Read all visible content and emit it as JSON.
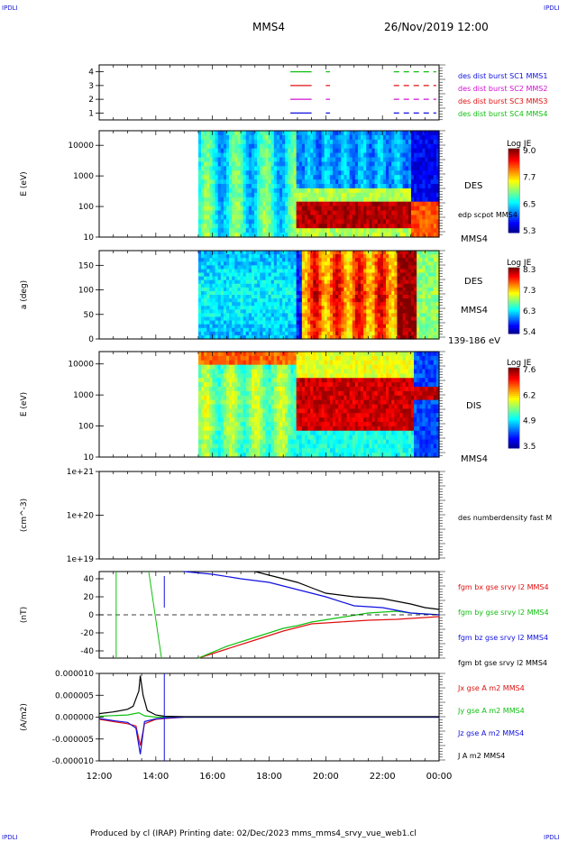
{
  "header": {
    "spacecraft": "MMS4",
    "datetime": "26/Nov/2019 12:00",
    "corner": "IPDLI"
  },
  "footer": {
    "text": "Produced by cl (IRAP)   Printing date: 02/Dec/2023   mms_mms4_srvy_vue_web1.cl"
  },
  "colors": {
    "red": "#e01010",
    "green": "#10c010",
    "blue": "#1010e0",
    "magenta": "#d010d0",
    "black": "#000000",
    "corner_blue": "#1b1bd6"
  },
  "time_axis": {
    "ticks": [
      "12:00",
      "14:00",
      "16:00",
      "18:00",
      "20:00",
      "22:00",
      "00:00"
    ]
  },
  "chart_data": [
    {
      "type": "timeline",
      "id": "availability",
      "ylim": [
        0.5,
        4.5
      ],
      "yticks": [
        "1",
        "2",
        "3",
        "4"
      ],
      "legend": [
        {
          "label": "des dist burst SC1 MMS1",
          "color": "#1010e0"
        },
        {
          "label": "des dist burst SC2 MMS2",
          "color": "#d010d0"
        },
        {
          "label": "des dist burst SC3 MMS3",
          "color": "#e01010"
        },
        {
          "label": "des dist burst SC4 MMS4",
          "color": "#10c010"
        }
      ],
      "segments_hours": [
        [
          18.75,
          19.5
        ],
        [
          20.0,
          20.15
        ],
        [
          22.4,
          23.9
        ]
      ]
    },
    {
      "type": "heatmap",
      "id": "des-energy",
      "ylabel": "E (eV)",
      "yscale": "log",
      "ylim": [
        10,
        30000
      ],
      "yticks": [
        "10",
        "100",
        "1000",
        "10000"
      ],
      "side_label": "DES",
      "overlay_label": "edp scpot MMS4",
      "below_label": "MMS4",
      "colorbar": {
        "title": "Log JE",
        "min": 5.3,
        "max": 9.0,
        "ticks": [
          "9.0",
          "7.7",
          "6.5",
          "5.3"
        ]
      },
      "data_start_hour": 15.5,
      "data_end_hour": 24.0
    },
    {
      "type": "heatmap",
      "id": "des-pitch",
      "ylabel": "a (deg)",
      "ylim": [
        0,
        180
      ],
      "yticks": [
        "0",
        "50",
        "100",
        "150"
      ],
      "side_label": "DES",
      "side_label2": "MMS4",
      "below_label": "139-186 eV",
      "colorbar": {
        "title": "Log JE",
        "min": 5.4,
        "max": 8.3,
        "ticks": [
          "8.3",
          "7.3",
          "6.3",
          "5.4"
        ]
      },
      "data_start_hour": 15.5,
      "data_end_hour": 24.0
    },
    {
      "type": "heatmap",
      "id": "dis-energy",
      "ylabel": "E (eV)",
      "yscale": "log",
      "ylim": [
        10,
        25000
      ],
      "yticks": [
        "10",
        "100",
        "1000",
        "10000"
      ],
      "side_label": "DIS",
      "below_label": "MMS4",
      "colorbar": {
        "title": "Log JE",
        "min": 3.5,
        "max": 7.6,
        "ticks": [
          "7.6",
          "6.2",
          "4.9",
          "3.5"
        ]
      },
      "data_start_hour": 15.5,
      "data_end_hour": 24.0
    },
    {
      "type": "line",
      "id": "density",
      "ylabel": "(cm^-3)",
      "yscale": "log",
      "ylim": [
        1e+19,
        1e+21
      ],
      "yticks": [
        "1e+19",
        "1e+20",
        "1e+21"
      ],
      "series": [
        {
          "name": "des numberdensity fast M",
          "color": "#000000",
          "values": []
        }
      ]
    },
    {
      "type": "line",
      "id": "magnetic-field",
      "ylabel": "(nT)",
      "ylim": [
        -48,
        48
      ],
      "yticks": [
        "-40",
        "-20",
        "0",
        "20",
        "40"
      ],
      "series": [
        {
          "name": "fgm bx gse srvy l2 MMS4",
          "color": "#e01010",
          "x": [
            15.5,
            16.5,
            17.5,
            18.5,
            19.0,
            19.5,
            20.5,
            21.5,
            22.5,
            23.0,
            23.5,
            24.0
          ],
          "values": [
            -48,
            -38,
            -28,
            -18,
            -14,
            -10,
            -8,
            -6,
            -5,
            -4,
            -3,
            -2
          ]
        },
        {
          "name": "fgm by gse srvy l2 MMS4",
          "color": "#10c010",
          "x": [
            15.5,
            16.5,
            17.5,
            18.5,
            19.0,
            19.5,
            20.5,
            21.5,
            22.5,
            23.0,
            23.5,
            24.0
          ],
          "values": [
            -48,
            -35,
            -25,
            -15,
            -12,
            -8,
            -3,
            2,
            4,
            2,
            1,
            0
          ]
        },
        {
          "name": "fgm bz gse srvy l2 MMS4",
          "color": "#1010e0",
          "x": [
            15.0,
            16.0,
            17.0,
            17.5,
            18.0,
            18.5,
            19.0,
            20.0,
            21.0,
            22.0,
            23.0,
            24.0
          ],
          "values": [
            48,
            45,
            40,
            38,
            36,
            32,
            28,
            20,
            10,
            8,
            2,
            0
          ]
        },
        {
          "name": "fgm bt gse srvy l2 MMS4",
          "color": "#000000",
          "x": [
            17.5,
            18.0,
            18.5,
            19.0,
            19.5,
            20.0,
            21.0,
            22.0,
            23.0,
            23.5,
            24.0
          ],
          "values": [
            48,
            44,
            40,
            36,
            30,
            24,
            20,
            18,
            12,
            8,
            6
          ]
        }
      ]
    },
    {
      "type": "line",
      "id": "current-density",
      "ylabel": "(A/m2)",
      "ylim": [
        -1e-05,
        1e-05
      ],
      "yticks": [
        "-0.000010",
        "-0.000005",
        "0.000000",
        "0.000005",
        "0.000010"
      ],
      "series": [
        {
          "name": "Jx gse A m2 MMS4",
          "color": "#e01010",
          "x": [
            12.0,
            12.5,
            13.0,
            13.3,
            13.45,
            13.6,
            14.0,
            14.3,
            15.0,
            24.0
          ],
          "values": [
            -5e-07,
            -1e-06,
            -1.5e-06,
            -2e-06,
            -6.5e-06,
            -1.5e-06,
            -5e-07,
            -3e-07,
            0.0,
            0.0
          ]
        },
        {
          "name": "Jy gse A m2 MMS4",
          "color": "#10c010",
          "x": [
            12.0,
            13.0,
            13.4,
            13.6,
            14.0,
            24.0
          ],
          "values": [
            2e-07,
            5e-07,
            1e-06,
            3e-07,
            0.0,
            0.0
          ]
        },
        {
          "name": "Jz gse A m2 MMS4",
          "color": "#1010e0",
          "x": [
            12.0,
            12.5,
            13.0,
            13.3,
            13.45,
            13.6,
            14.0,
            14.3,
            15.0,
            24.0
          ],
          "values": [
            -3e-07,
            -8e-07,
            -1.2e-06,
            -2.5e-06,
            -8.5e-06,
            -1e-06,
            -4e-07,
            -2e-07,
            0.0,
            0.0
          ]
        },
        {
          "name": "J A m2 MMS4",
          "color": "#000000",
          "x": [
            12.0,
            12.5,
            13.0,
            13.2,
            13.4,
            13.45,
            13.55,
            13.7,
            14.0,
            14.3,
            15.0,
            24.0
          ],
          "values": [
            8e-07,
            1.2e-06,
            1.8e-06,
            2.5e-06,
            6e-06,
            9.5e-06,
            5e-06,
            1.5e-06,
            5e-07,
            2e-07,
            1e-07,
            1e-07
          ]
        }
      ]
    }
  ]
}
